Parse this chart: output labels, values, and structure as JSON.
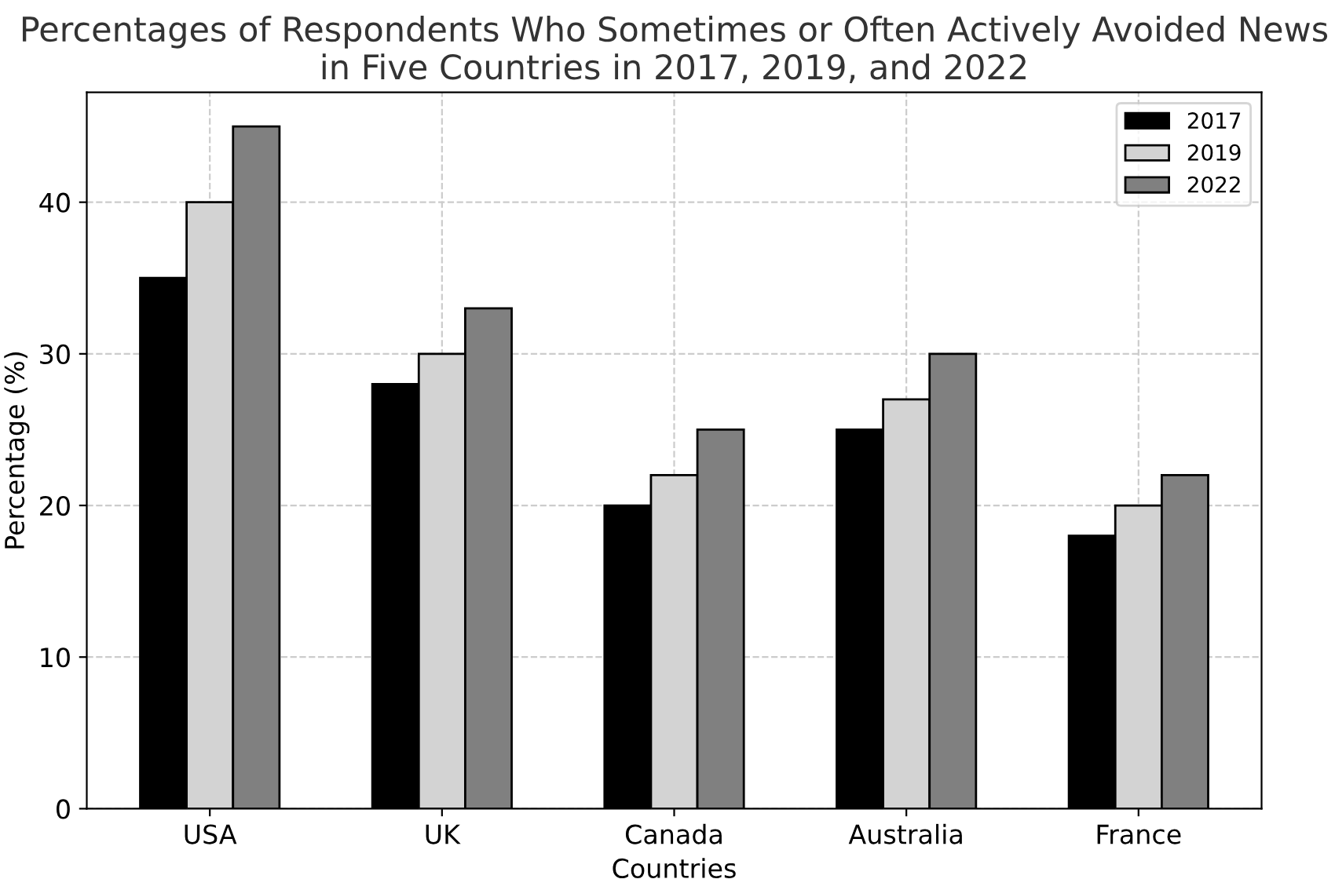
{
  "chart_data": {
    "type": "bar",
    "title": "Percentages of Respondents Who Sometimes or Often Actively Avoided News\nin Five Countries in 2017, 2019, and 2022",
    "xlabel": "Countries",
    "ylabel": "Percentage (%)",
    "categories": [
      "USA",
      "UK",
      "Canada",
      "Australia",
      "France"
    ],
    "series": [
      {
        "name": "2017",
        "color": "#000000",
        "values": [
          35,
          28,
          20,
          25,
          18
        ]
      },
      {
        "name": "2019",
        "color": "#d3d3d3",
        "values": [
          40,
          30,
          22,
          27,
          20
        ]
      },
      {
        "name": "2022",
        "color": "#808080",
        "values": [
          45,
          33,
          25,
          30,
          22
        ]
      }
    ],
    "ylim": [
      0,
      47.25
    ],
    "yticks": [
      0,
      10,
      20,
      30,
      40
    ],
    "grid": true,
    "legend": "upper right"
  }
}
